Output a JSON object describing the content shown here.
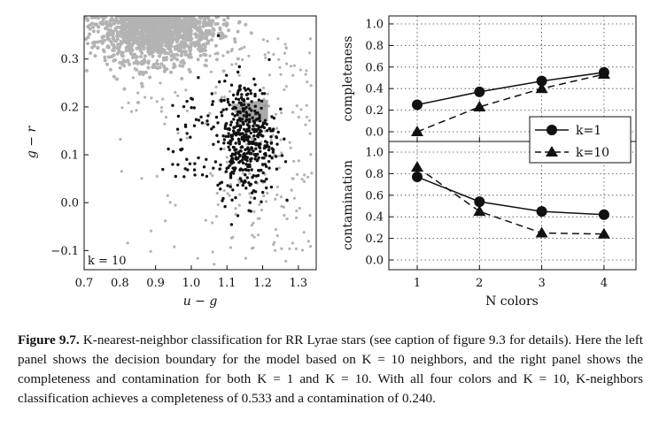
{
  "chart_data": [
    {
      "type": "scatter",
      "xlabel": "u − g",
      "ylabel": "g − r",
      "xlim": [
        0.7,
        1.35
      ],
      "ylim": [
        -0.14,
        0.39
      ],
      "xticks": [
        "0.7",
        "0.8",
        "0.9",
        "1.0",
        "1.1",
        "1.2",
        "1.3"
      ],
      "yticks": [
        "−0.1",
        "0.0",
        "0.1",
        "0.2",
        "0.3"
      ],
      "annotation": "k = 10",
      "colors": {
        "background_points": "#b3b3b3",
        "rr_lyrae_points": "#111111",
        "decision_boundary": "#8c8c8c"
      }
    },
    {
      "type": "line",
      "panel": "completeness",
      "ylabel": "completeness",
      "x": [
        1,
        2,
        3,
        4
      ],
      "ylim": [
        0.0,
        1.0
      ],
      "yticks": [
        "0.0",
        "0.2",
        "0.4",
        "0.6",
        "0.8",
        "1.0"
      ],
      "series": [
        {
          "name": "k=1",
          "marker": "circle",
          "style": "solid",
          "values": [
            0.25,
            0.37,
            0.47,
            0.55
          ]
        },
        {
          "name": "k=10",
          "marker": "triangle",
          "style": "dashed",
          "values": [
            0.0,
            0.23,
            0.4,
            0.533
          ]
        }
      ],
      "grid": true,
      "legend": "lower-right"
    },
    {
      "type": "line",
      "panel": "contamination",
      "ylabel": "contamination",
      "xlabel": "N colors",
      "x": [
        1,
        2,
        3,
        4
      ],
      "xticks": [
        "1",
        "2",
        "3",
        "4"
      ],
      "ylim": [
        0.0,
        1.0
      ],
      "yticks": [
        "0.0",
        "0.2",
        "0.4",
        "0.6",
        "0.8",
        "1.0"
      ],
      "series": [
        {
          "name": "k=1",
          "marker": "circle",
          "style": "solid",
          "values": [
            0.77,
            0.54,
            0.45,
            0.42
          ]
        },
        {
          "name": "k=10",
          "marker": "triangle",
          "style": "dashed",
          "values": [
            0.86,
            0.45,
            0.25,
            0.24
          ]
        }
      ],
      "grid": true
    }
  ],
  "caption": {
    "label": "Figure 9.7.",
    "text": "K-nearest-neighbor classification for RR Lyrae stars (see caption of figure 9.3 for details). Here the left panel shows the decision boundary for the model based on K = 10 neighbors, and the right panel shows the completeness and contamination for both K = 1 and K = 10. With all four colors and K = 10, K-neighbors classification achieves a completeness of 0.533 and a contamination of 0.240."
  }
}
